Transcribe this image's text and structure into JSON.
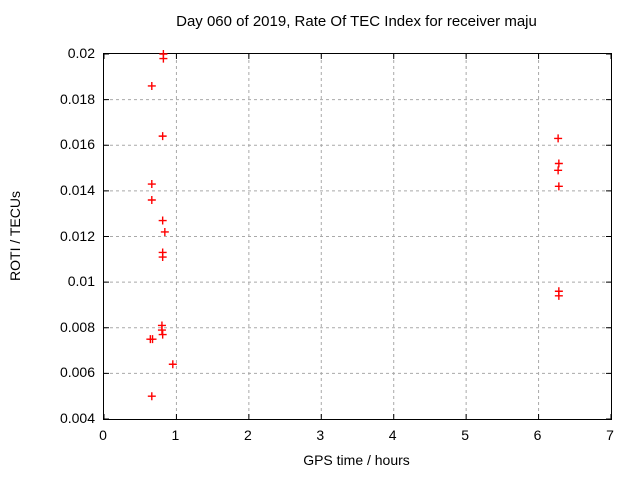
{
  "title": "Day 060 of 2019, Rate Of TEC Index for receiver maju",
  "colors": {
    "background": "#ffffff",
    "border": "#000000",
    "grid": "#a9a9a9",
    "marker": "#ff0000",
    "text": "#000000"
  },
  "chart_data": {
    "type": "scatter",
    "title": "Day 060 of 2019, Rate Of TEC Index for receiver maju",
    "xlabel": "GPS time / hours",
    "ylabel": "ROTI / TECUs",
    "xlim": [
      0,
      7
    ],
    "ylim": [
      0.004,
      0.02
    ],
    "xticks": [
      0,
      1,
      2,
      3,
      4,
      5,
      6,
      7
    ],
    "xtick_labels": [
      "0",
      "1",
      "2",
      "3",
      "4",
      "5",
      "6",
      "7"
    ],
    "yticks": [
      0.004,
      0.006,
      0.008,
      0.01,
      0.012,
      0.014,
      0.016,
      0.018,
      0.02
    ],
    "ytick_labels": [
      "0.004",
      "0.006",
      "0.008",
      "0.01",
      "0.012",
      "0.014",
      "0.016",
      "0.018",
      "0.02"
    ],
    "grid": true,
    "grid_style": "dashed",
    "legend": "none",
    "marker": "plus",
    "marker_color": "#ff0000",
    "series": [
      {
        "name": "ROTI",
        "points": [
          [
            0.82,
            0.02
          ],
          [
            0.82,
            0.0198
          ],
          [
            0.66,
            0.0186
          ],
          [
            0.81,
            0.0164
          ],
          [
            0.66,
            0.0143
          ],
          [
            0.66,
            0.0136
          ],
          [
            0.81,
            0.0127
          ],
          [
            0.84,
            0.0122
          ],
          [
            0.81,
            0.0113
          ],
          [
            0.81,
            0.0111
          ],
          [
            0.8,
            0.0081
          ],
          [
            0.8,
            0.0079
          ],
          [
            0.81,
            0.0077
          ],
          [
            0.64,
            0.0075
          ],
          [
            0.67,
            0.0075
          ],
          [
            0.95,
            0.0064
          ],
          [
            0.66,
            0.005
          ],
          [
            6.27,
            0.0163
          ],
          [
            6.28,
            0.0152
          ],
          [
            6.27,
            0.0149
          ],
          [
            6.28,
            0.0142
          ],
          [
            6.28,
            0.0096
          ],
          [
            6.28,
            0.0094
          ]
        ]
      }
    ]
  }
}
